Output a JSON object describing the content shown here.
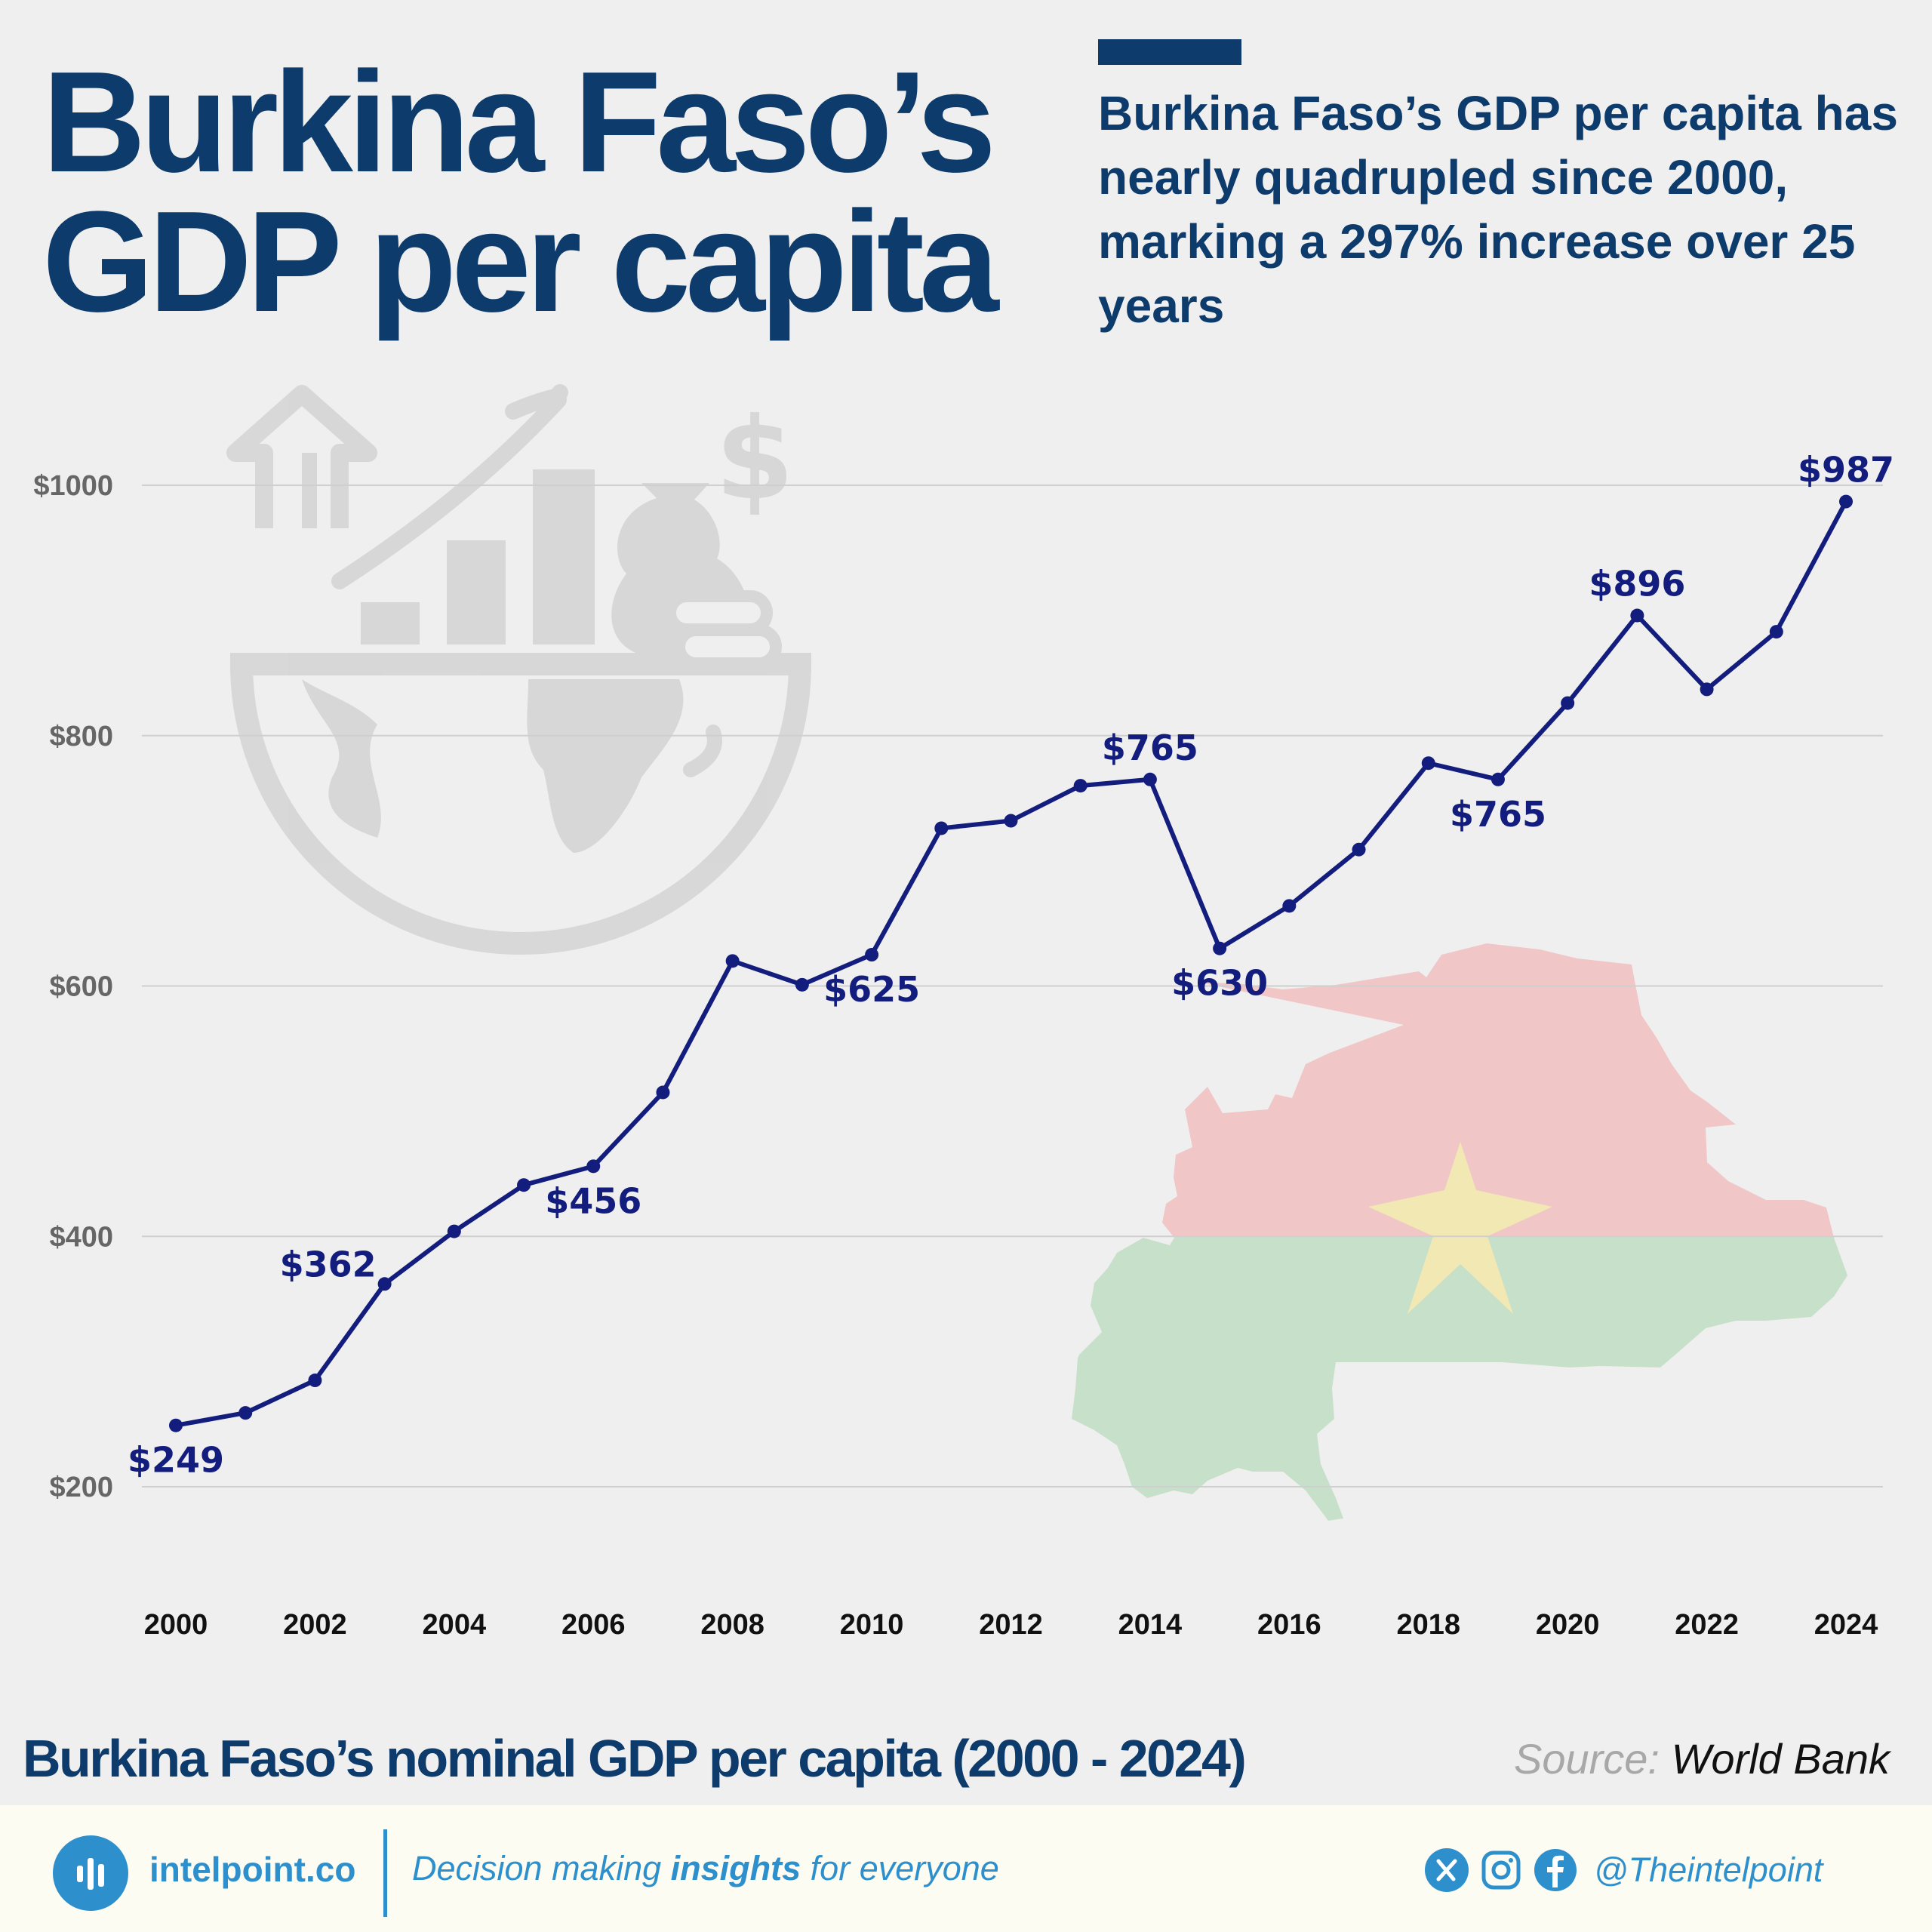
{
  "header": {
    "title_line1": "Burkina Faso’s",
    "title_line2": "GDP per capita",
    "subtitle": "Burkina Faso’s GDP per capita has nearly quadrupled since 2000, marking a 297% increase over 25 years"
  },
  "chart_data": {
    "type": "line",
    "x": [
      2000,
      2001,
      2002,
      2003,
      2004,
      2005,
      2006,
      2007,
      2008,
      2009,
      2010,
      2011,
      2012,
      2013,
      2014,
      2015,
      2016,
      2017,
      2018,
      2019,
      2020,
      2021,
      2022,
      2023,
      2024
    ],
    "series": [
      {
        "values": [
          249,
          259,
          285,
          362,
          404,
          441,
          456,
          515,
          620,
          601,
          625,
          726,
          732,
          760,
          765,
          630,
          664,
          709,
          778,
          765,
          826,
          896,
          837,
          883,
          987
        ]
      }
    ],
    "data_labels": [
      {
        "year": 2000,
        "text": "$249",
        "position": "below"
      },
      {
        "year": 2003,
        "text": "$362",
        "position": "above-left"
      },
      {
        "year": 2006,
        "text": "$456",
        "position": "below"
      },
      {
        "year": 2010,
        "text": "$625",
        "position": "below"
      },
      {
        "year": 2014,
        "text": "$765",
        "position": "above"
      },
      {
        "year": 2015,
        "text": "$630",
        "position": "below"
      },
      {
        "year": 2019,
        "text": "$765",
        "position": "below"
      },
      {
        "year": 2021,
        "text": "$896",
        "position": "above"
      },
      {
        "year": 2024,
        "text": "$987",
        "position": "above"
      }
    ],
    "y_ticks": [
      {
        "value": 200,
        "label": "$200"
      },
      {
        "value": 400,
        "label": "$400"
      },
      {
        "value": 600,
        "label": "$600"
      },
      {
        "value": 800,
        "label": "$800"
      },
      {
        "value": 1000,
        "label": "$1000"
      }
    ],
    "x_ticks": [
      "2000",
      "2002",
      "2004",
      "2006",
      "2008",
      "2010",
      "2012",
      "2014",
      "2016",
      "2018",
      "2020",
      "2022",
      "2024"
    ],
    "ylim": [
      100,
      1060
    ],
    "grid": "horizontal",
    "line_color": "#131d7e"
  },
  "caption": "Burkina Faso’s nominal GDP per capita (2000 - 2024)",
  "source": {
    "label": "Source:",
    "name": "World Bank"
  },
  "footer": {
    "brand": "intelpoint.co",
    "tagline_pre": "Decision making ",
    "tagline_bold": "insights",
    "tagline_post": " for everyone",
    "handle": "@Theintelpoint"
  },
  "colors": {
    "title": "#0d3b6b",
    "line": "#131d7e",
    "brand": "#2d8fcc",
    "flag_red": "#f0c6c7",
    "flag_green": "#c7e0c9",
    "flag_star": "#f2e8b3"
  },
  "icons": [
    "growth-globe-icon",
    "burkina-faso-flag-map",
    "logo-icon",
    "x-icon",
    "instagram-icon",
    "facebook-icon"
  ]
}
